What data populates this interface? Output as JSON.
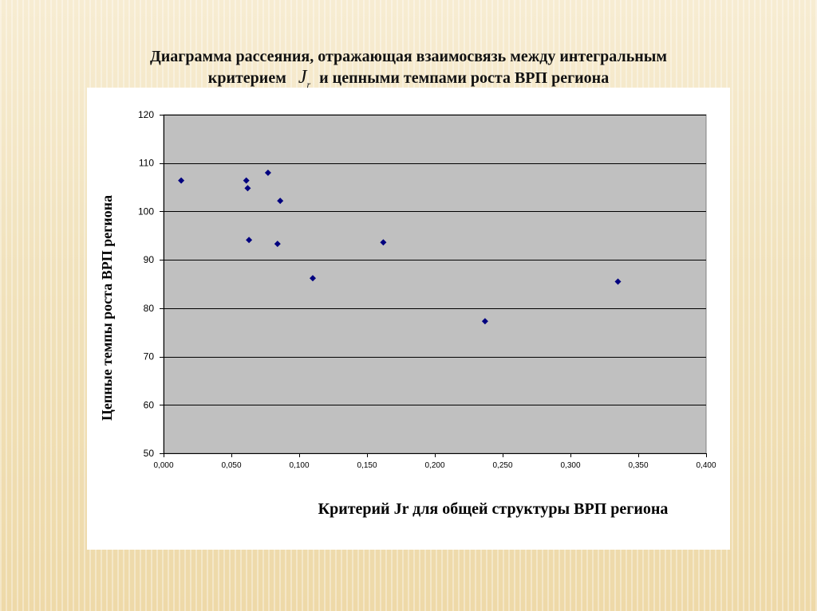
{
  "page_title": {
    "line1": "Диаграмма рассеяния, отражающая взаимосвязь между интегральным",
    "line2_before": "критерием",
    "jr_symbol": "J",
    "jr_subscript": "r",
    "line2_after": "и цепными темпами роста ВРП региона"
  },
  "chart_data": {
    "type": "scatter",
    "xlabel": "Критерий Jr для общей структуры ВРП региона",
    "ylabel": "Цепные темпы роста ВРП региона",
    "xlim": [
      0,
      0.4
    ],
    "ylim": [
      50,
      120
    ],
    "x_ticks": [
      0,
      0.05,
      0.1,
      0.15,
      0.2,
      0.25,
      0.3,
      0.35,
      0.4
    ],
    "x_tick_labels": [
      "0,000",
      "0,050",
      "0,100",
      "0,150",
      "0,200",
      "0,250",
      "0,300",
      "0,350",
      "0,400"
    ],
    "y_ticks": [
      50,
      60,
      70,
      80,
      90,
      100,
      110,
      120
    ],
    "y_tick_labels": [
      "50",
      "60",
      "70",
      "80",
      "90",
      "100",
      "110",
      "120"
    ],
    "grid": true,
    "marker": "diamond",
    "colors": {
      "plot_background": "#c0c0c0",
      "marker": "#00007f",
      "gridline": "#000000"
    },
    "points": [
      {
        "x": 0.013,
        "y": 106.4
      },
      {
        "x": 0.061,
        "y": 106.4
      },
      {
        "x": 0.062,
        "y": 104.8
      },
      {
        "x": 0.063,
        "y": 94.1
      },
      {
        "x": 0.077,
        "y": 108.0
      },
      {
        "x": 0.084,
        "y": 93.3
      },
      {
        "x": 0.086,
        "y": 102.2
      },
      {
        "x": 0.11,
        "y": 86.2
      },
      {
        "x": 0.162,
        "y": 93.6
      },
      {
        "x": 0.237,
        "y": 77.3
      },
      {
        "x": 0.335,
        "y": 85.5
      }
    ]
  }
}
